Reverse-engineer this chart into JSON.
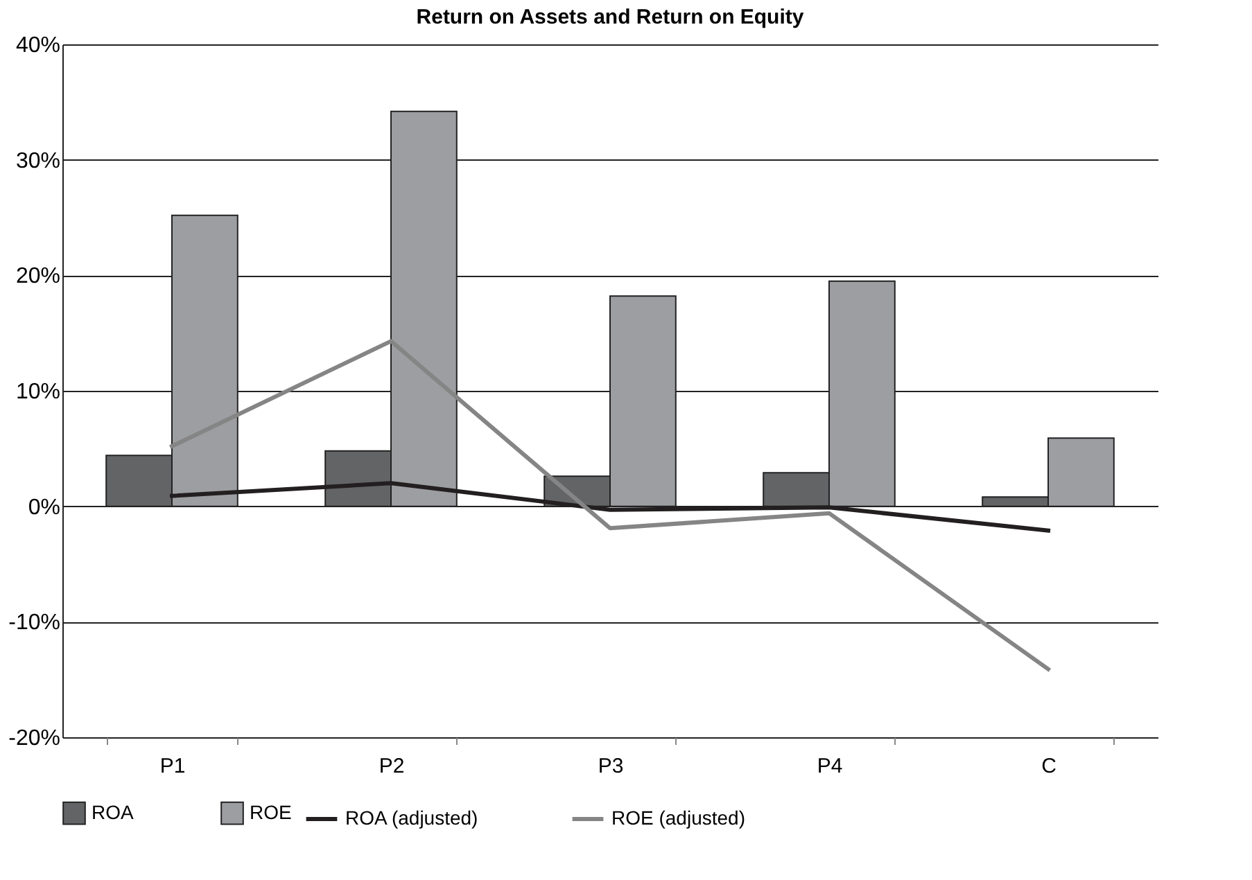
{
  "chart_data": {
    "type": "bar",
    "title": "Return on Assets and Return on Equity",
    "categories": [
      "P1",
      "P2",
      "P3",
      "P4",
      "C"
    ],
    "series": [
      {
        "name": "ROA",
        "color": "#636466",
        "values": [
          4.4,
          4.8,
          2.6,
          2.9,
          0.8
        ]
      },
      {
        "name": "ROE",
        "color": "#9d9ea2",
        "values": [
          25.2,
          34.2,
          18.2,
          19.5,
          5.9
        ]
      },
      {
        "name": "ROA (adjusted)",
        "type": "line",
        "color": "#231f20",
        "values": [
          0.9,
          2.0,
          -0.3,
          -0.1,
          -2.1
        ]
      },
      {
        "name": "ROE (adjusted)",
        "type": "line",
        "color": "#858585",
        "values": [
          5.2,
          14.3,
          -1.9,
          -0.6,
          -14.1
        ]
      }
    ],
    "ylim": [
      -20,
      40
    ],
    "yticks": [
      {
        "value": -20,
        "label": "-20%"
      },
      {
        "value": -10,
        "label": "-10%"
      },
      {
        "value": 0,
        "label": "0%"
      },
      {
        "value": 10,
        "label": "10%"
      },
      {
        "value": 20,
        "label": "20%"
      },
      {
        "value": 30,
        "label": "30%"
      },
      {
        "value": 40,
        "label": "40%"
      }
    ],
    "grid": "y",
    "legend": "bottom",
    "line_style": "solid",
    "marker": "none"
  }
}
